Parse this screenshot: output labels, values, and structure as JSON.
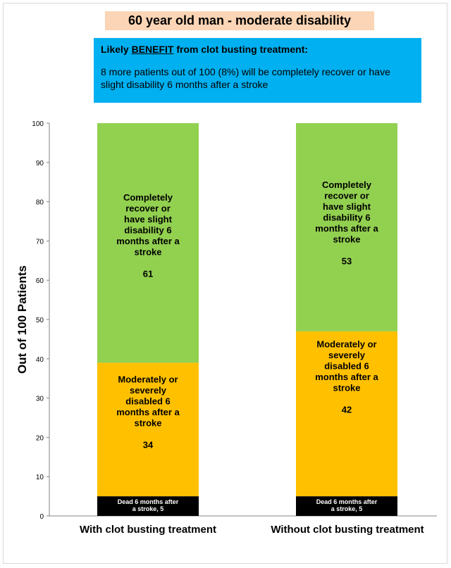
{
  "title": "60 year old man - moderate disability",
  "benefit": {
    "heading_prefix": "Likely ",
    "heading_emph": "BENEFIT",
    "heading_suffix": " from clot busting treatment:",
    "text": "8 more patients out of 100 (8%) will be completely recover or have slight disability 6 months after a stroke"
  },
  "colors": {
    "benefit_box": "#00b0f0",
    "title_bg": "#fbd5b5",
    "recover": "#92d050",
    "disabled": "#ffc000",
    "dead": "#000000"
  },
  "chart_data": {
    "type": "bar",
    "stacked": true,
    "ylabel": "Out of 100 Patients",
    "ylim": [
      0,
      100
    ],
    "yticks": [
      0,
      10,
      20,
      30,
      40,
      50,
      60,
      70,
      80,
      90,
      100
    ],
    "grid": false,
    "categories": [
      "With clot busting treatment",
      "Without clot busting treatment"
    ],
    "series": [
      {
        "key": "dead",
        "values": [
          5,
          5
        ],
        "labels": [
          [
            "Dead 6 months after",
            "a stroke, 5"
          ],
          [
            "Dead 6 months after",
            "a stroke, 5"
          ]
        ]
      },
      {
        "key": "disabled",
        "values": [
          34,
          42
        ],
        "labels": [
          [
            "Moderately or",
            "severely",
            "disabled 6",
            "months after a",
            "stroke",
            "",
            "34"
          ],
          [
            "Moderately or",
            "severely",
            "disabled 6",
            "months after a",
            "stroke",
            "",
            "42"
          ]
        ]
      },
      {
        "key": "recover",
        "values": [
          61,
          53
        ],
        "labels": [
          [
            "Completely",
            "recover or",
            "have slight",
            "disability 6",
            "months after a",
            "stroke",
            "",
            "61"
          ],
          [
            "Completely",
            "recover or",
            "have slight",
            "disability 6",
            "months after a",
            "stroke",
            "",
            "53"
          ]
        ]
      }
    ]
  }
}
